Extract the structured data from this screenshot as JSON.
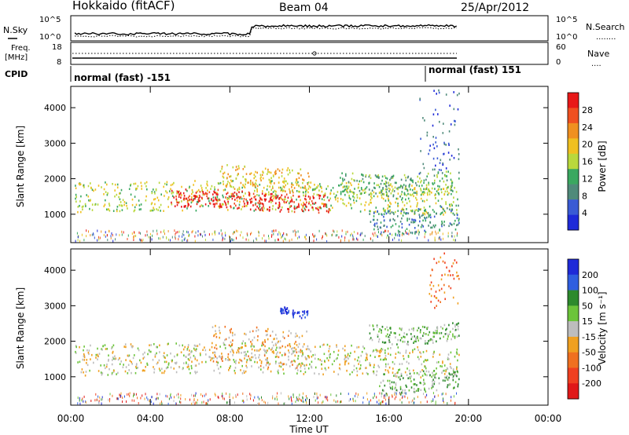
{
  "header": {
    "station": "Hokkaido (fitACF)",
    "beam": "Beam 04",
    "date": "25/Apr/2012"
  },
  "noise_panel": {
    "left_label": "N.Sky",
    "left_ticks": [
      "10^5",
      "10^0"
    ],
    "right_ticks": [
      "10^5",
      "10^0"
    ],
    "right_label": "N.Search",
    "right_legend": "........"
  },
  "freq_panel": {
    "left_label_1": "Freq.",
    "left_label_2": "[MHz]",
    "left_ticks": [
      "18",
      "8"
    ],
    "right_ticks": [
      "60",
      "0"
    ],
    "right_label": "Nave",
    "right_legend": "...."
  },
  "cpid": {
    "label": "CPID",
    "mode_1": "normal (fast) -151",
    "mode_2": "normal (fast) 151"
  },
  "colors": {
    "power": [
      "#1e2ad8",
      "#3a5bd4",
      "#4f8a7a",
      "#3aa860",
      "#b9d83c",
      "#f0c020",
      "#f09020",
      "#f05020",
      "#e81818"
    ],
    "velocity": [
      "#1e2ad8",
      "#2f5ee0",
      "#2d8a2d",
      "#6cc43a",
      "#bdbdbd",
      "#f0a020",
      "#f07020",
      "#f04020",
      "#e01818"
    ]
  },
  "chart_data": [
    {
      "type": "heatmap",
      "quantity": "Power",
      "ylabel": "Slant Range [km]",
      "y_ticks": [
        "1000",
        "2000",
        "3000",
        "4000"
      ],
      "ylim": [
        200,
        4600
      ],
      "colorbar_label": "Power [dB]",
      "colorbar_ticks": [
        "4",
        "8",
        "12",
        "16",
        "20",
        "24",
        "28"
      ],
      "bands": [
        {
          "t0": 0.2,
          "t1": 19.5,
          "r0": 1050,
          "r1": 1900,
          "level": 4
        },
        {
          "t0": 5.0,
          "t1": 13.0,
          "r0": 1150,
          "r1": 1650,
          "level": 8
        },
        {
          "t0": 7.5,
          "t1": 12.0,
          "r0": 1700,
          "r1": 2400,
          "level": 5
        },
        {
          "t0": 13.5,
          "t1": 19.5,
          "r0": 1600,
          "r1": 2200,
          "level": 3
        },
        {
          "t0": 15.0,
          "t1": 19.5,
          "r0": 500,
          "r1": 1200,
          "level": 2
        },
        {
          "t0": 17.5,
          "t1": 19.5,
          "r0": 2200,
          "r1": 4500,
          "level": 1
        }
      ]
    },
    {
      "type": "heatmap",
      "quantity": "Velocity",
      "ylabel": "Slant Range [km]",
      "y_ticks": [
        "1000",
        "2000",
        "3000",
        "4000"
      ],
      "ylim": [
        200,
        4600
      ],
      "colorbar_label": "Velocity [m s⁻¹]",
      "colorbar_ticks": [
        "200",
        "100",
        "50",
        "15",
        "-15",
        "-50",
        "-100",
        "-200"
      ],
      "bands": [
        {
          "t0": 0.2,
          "t1": 19.5,
          "r0": 1050,
          "r1": 1900,
          "level": 4
        },
        {
          "t0": 7.0,
          "t1": 12.0,
          "r0": 1300,
          "r1": 2400,
          "level": 5
        },
        {
          "t0": 10.5,
          "t1": 12.0,
          "r0": 2750,
          "r1": 2950,
          "level": 0
        },
        {
          "t0": 15.0,
          "t1": 19.5,
          "r0": 2000,
          "r1": 2500,
          "level": 3
        },
        {
          "t0": 15.5,
          "t1": 19.5,
          "r0": 600,
          "r1": 1200,
          "level": 3
        },
        {
          "t0": 18.0,
          "t1": 19.5,
          "r0": 3000,
          "r1": 4500,
          "level": 6
        }
      ]
    }
  ],
  "x_axis": {
    "label": "Time UT",
    "ticks": [
      "00:00",
      "04:00",
      "08:00",
      "12:00",
      "16:00",
      "20:00",
      "00:00"
    ],
    "xlim": [
      0,
      24
    ]
  }
}
